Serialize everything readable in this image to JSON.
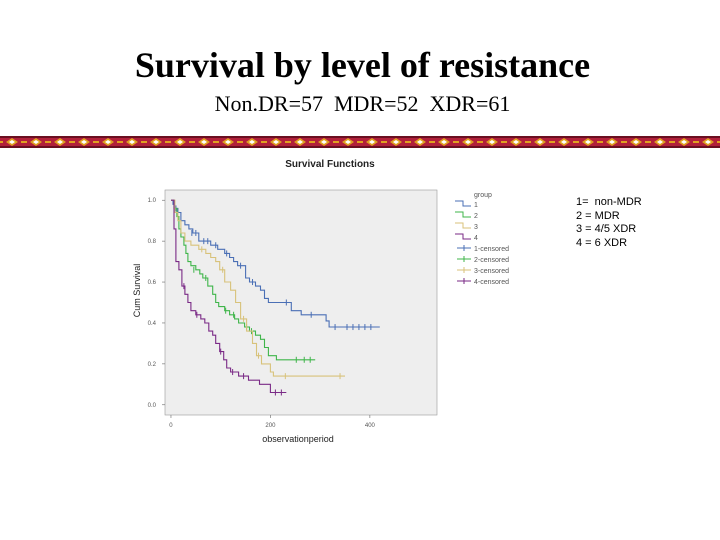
{
  "slide": {
    "title": "Survival by level of resistance",
    "subtitle": "Non.DR=57  MDR=52  XDR=61"
  },
  "legend_note": [
    "1=  non-MDR",
    "2 = MDR",
    "3 = 4/5 XDR",
    "4 = 6 XDR"
  ],
  "colors": {
    "group1": "#4a6fb5",
    "group2": "#3fb54a",
    "group3": "#d8c27a",
    "group4": "#7a2a86",
    "plot_bg": "#eeeeee",
    "border_red": "#b1203a",
    "border_gold": "#e0a020"
  },
  "chart_data": {
    "type": "line",
    "title": "Survival Functions",
    "xlabel": "observationperiod",
    "ylabel": "Cum Survival",
    "xlim": [
      -12,
      535
    ],
    "ylim": [
      -0.05,
      1.05
    ],
    "x_ticks": [
      0,
      200,
      400
    ],
    "x_tick_labels": [
      "0",
      "200",
      "400"
    ],
    "y_ticks": [
      0.0,
      0.2,
      0.4,
      0.6,
      0.8,
      1.0
    ],
    "y_tick_labels": [
      "0.0",
      "0.2",
      "0.4",
      "0.6",
      "0.8",
      "1.0"
    ],
    "grid": false,
    "legend": {
      "title": "group",
      "placement": "right",
      "entries": [
        "1",
        "2",
        "3",
        "4",
        "1-censored",
        "2-censored",
        "3-censored",
        "4-censored"
      ]
    },
    "series": [
      {
        "name": "1",
        "color": "#4a6fb5",
        "steps": [
          [
            0,
            1.0
          ],
          [
            4,
            0.98
          ],
          [
            8,
            0.96
          ],
          [
            14,
            0.94
          ],
          [
            20,
            0.9
          ],
          [
            28,
            0.88
          ],
          [
            36,
            0.86
          ],
          [
            44,
            0.84
          ],
          [
            56,
            0.8
          ],
          [
            70,
            0.8
          ],
          [
            80,
            0.78
          ],
          [
            94,
            0.76
          ],
          [
            108,
            0.74
          ],
          [
            118,
            0.72
          ],
          [
            126,
            0.7
          ],
          [
            134,
            0.68
          ],
          [
            150,
            0.62
          ],
          [
            158,
            0.6
          ],
          [
            170,
            0.58
          ],
          [
            180,
            0.56
          ],
          [
            188,
            0.52
          ],
          [
            196,
            0.5
          ],
          [
            228,
            0.5
          ],
          [
            242,
            0.46
          ],
          [
            262,
            0.44
          ],
          [
            300,
            0.44
          ],
          [
            312,
            0.41
          ],
          [
            318,
            0.38
          ],
          [
            420,
            0.38
          ]
        ],
        "censored": [
          [
            10,
            0.96
          ],
          [
            42,
            0.84
          ],
          [
            50,
            0.84
          ],
          [
            66,
            0.8
          ],
          [
            74,
            0.8
          ],
          [
            90,
            0.78
          ],
          [
            112,
            0.74
          ],
          [
            140,
            0.68
          ],
          [
            164,
            0.6
          ],
          [
            232,
            0.5
          ],
          [
            282,
            0.44
          ],
          [
            330,
            0.38
          ],
          [
            354,
            0.38
          ],
          [
            366,
            0.38
          ],
          [
            378,
            0.38
          ],
          [
            390,
            0.38
          ],
          [
            402,
            0.38
          ]
        ]
      },
      {
        "name": "2",
        "color": "#3fb54a",
        "steps": [
          [
            0,
            1.0
          ],
          [
            6,
            0.96
          ],
          [
            12,
            0.92
          ],
          [
            16,
            0.86
          ],
          [
            20,
            0.82
          ],
          [
            26,
            0.78
          ],
          [
            30,
            0.74
          ],
          [
            34,
            0.7
          ],
          [
            40,
            0.68
          ],
          [
            50,
            0.66
          ],
          [
            58,
            0.64
          ],
          [
            64,
            0.62
          ],
          [
            74,
            0.58
          ],
          [
            84,
            0.54
          ],
          [
            90,
            0.5
          ],
          [
            96,
            0.48
          ],
          [
            108,
            0.46
          ],
          [
            118,
            0.44
          ],
          [
            128,
            0.42
          ],
          [
            136,
            0.4
          ],
          [
            148,
            0.38
          ],
          [
            158,
            0.36
          ],
          [
            170,
            0.34
          ],
          [
            180,
            0.32
          ],
          [
            188,
            0.28
          ],
          [
            196,
            0.24
          ],
          [
            212,
            0.22
          ],
          [
            290,
            0.22
          ]
        ],
        "censored": [
          [
            46,
            0.66
          ],
          [
            70,
            0.62
          ],
          [
            110,
            0.46
          ],
          [
            126,
            0.44
          ],
          [
            152,
            0.38
          ],
          [
            162,
            0.36
          ],
          [
            252,
            0.22
          ],
          [
            268,
            0.22
          ],
          [
            280,
            0.22
          ]
        ]
      },
      {
        "name": "3",
        "color": "#d8c27a",
        "steps": [
          [
            0,
            1.0
          ],
          [
            8,
            0.94
          ],
          [
            14,
            0.9
          ],
          [
            20,
            0.84
          ],
          [
            28,
            0.8
          ],
          [
            40,
            0.78
          ],
          [
            56,
            0.76
          ],
          [
            70,
            0.74
          ],
          [
            80,
            0.72
          ],
          [
            90,
            0.7
          ],
          [
            98,
            0.66
          ],
          [
            108,
            0.6
          ],
          [
            120,
            0.56
          ],
          [
            130,
            0.5
          ],
          [
            140,
            0.42
          ],
          [
            152,
            0.36
          ],
          [
            164,
            0.3
          ],
          [
            172,
            0.24
          ],
          [
            182,
            0.2
          ],
          [
            200,
            0.16
          ],
          [
            206,
            0.14
          ],
          [
            350,
            0.14
          ]
        ],
        "censored": [
          [
            62,
            0.76
          ],
          [
            104,
            0.66
          ],
          [
            146,
            0.42
          ],
          [
            176,
            0.24
          ],
          [
            230,
            0.14
          ],
          [
            340,
            0.14
          ]
        ]
      },
      {
        "name": "4",
        "color": "#7a2a86",
        "steps": [
          [
            0,
            1.0
          ],
          [
            6,
            0.86
          ],
          [
            10,
            0.7
          ],
          [
            16,
            0.66
          ],
          [
            22,
            0.58
          ],
          [
            28,
            0.54
          ],
          [
            34,
            0.5
          ],
          [
            40,
            0.46
          ],
          [
            50,
            0.44
          ],
          [
            60,
            0.42
          ],
          [
            68,
            0.4
          ],
          [
            76,
            0.36
          ],
          [
            84,
            0.34
          ],
          [
            90,
            0.3
          ],
          [
            98,
            0.26
          ],
          [
            106,
            0.22
          ],
          [
            112,
            0.18
          ],
          [
            120,
            0.16
          ],
          [
            136,
            0.14
          ],
          [
            156,
            0.12
          ],
          [
            178,
            0.1
          ],
          [
            196,
            0.1
          ],
          [
            200,
            0.06
          ],
          [
            232,
            0.06
          ]
        ],
        "censored": [
          [
            26,
            0.58
          ],
          [
            52,
            0.44
          ],
          [
            100,
            0.26
          ],
          [
            124,
            0.16
          ],
          [
            146,
            0.14
          ],
          [
            210,
            0.06
          ],
          [
            222,
            0.06
          ]
        ]
      }
    ]
  }
}
